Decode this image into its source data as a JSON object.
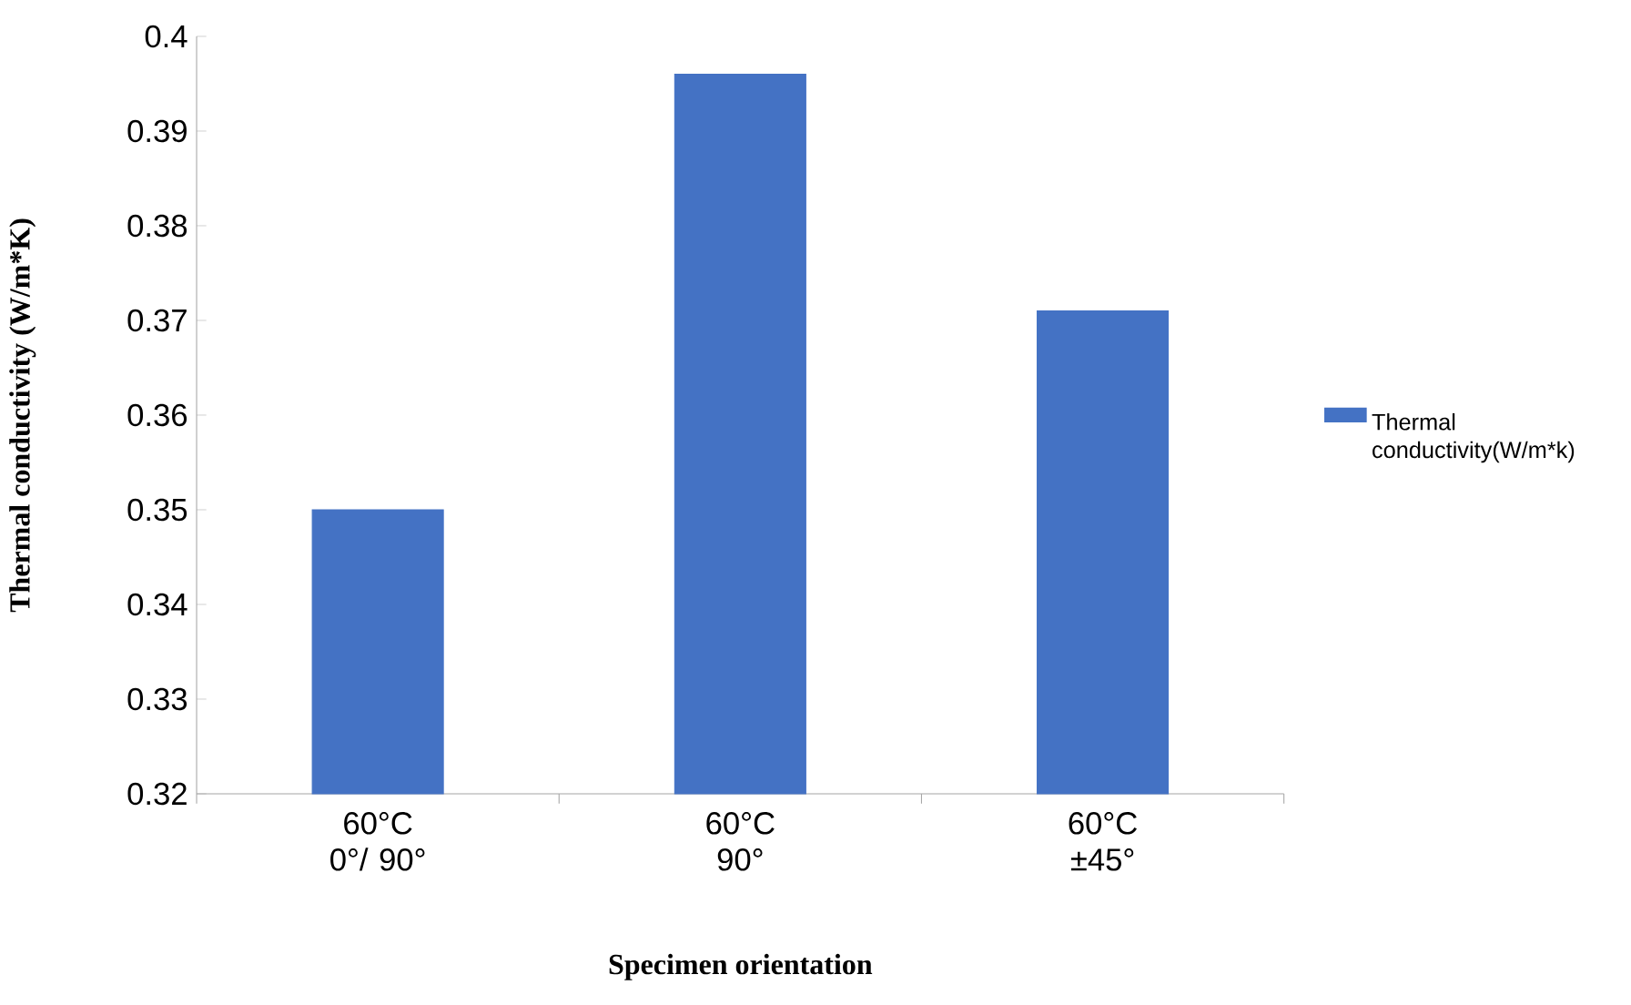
{
  "chart_data": {
    "type": "bar",
    "xlabel": "Specimen orientation",
    "ylabel": "Thermal conductivity (W/m*K)",
    "categories": [
      "60°C 0°/ 90°",
      "60°C 90°",
      "60°C ±45°"
    ],
    "series": [
      {
        "name": "Thermal conductivity(W/m*k)",
        "color": "#4472c4",
        "values": [
          0.35,
          0.396,
          0.371
        ]
      }
    ],
    "ylim": [
      0.32,
      0.4
    ],
    "yticks": [
      0.32,
      0.33,
      0.34,
      0.35,
      0.36,
      0.37,
      0.38,
      0.39,
      0.4
    ],
    "legend": "right",
    "grid": false
  }
}
